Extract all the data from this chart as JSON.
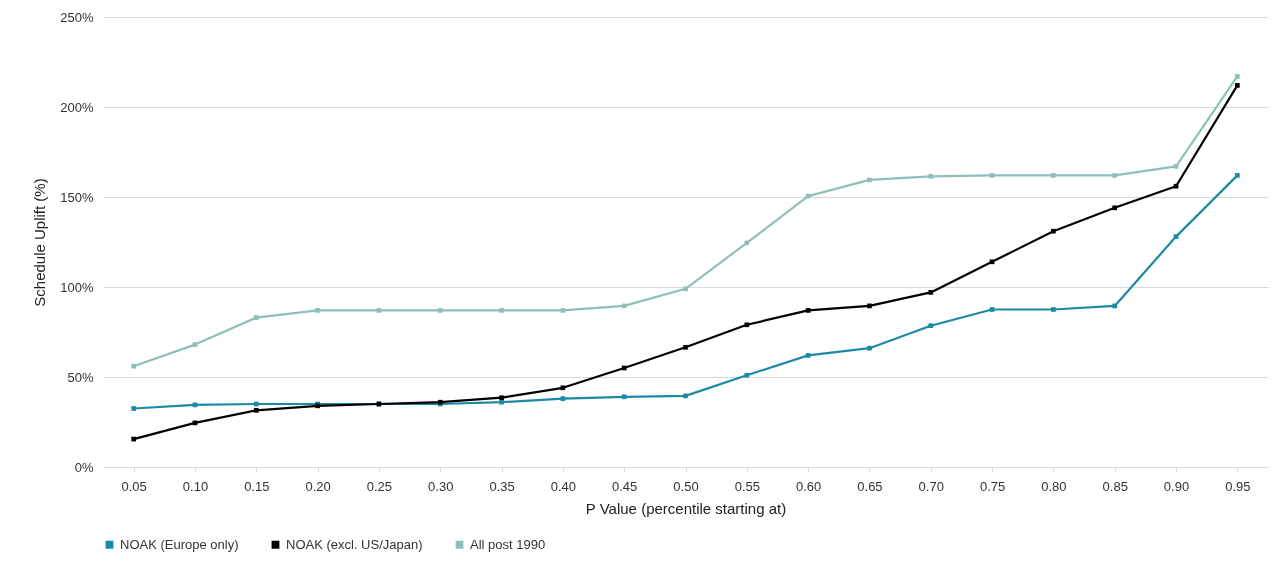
{
  "chart_data": {
    "type": "line",
    "xlabel": "P Value  (percentile starting at)",
    "ylabel": "Schedule Uplift (%)",
    "categories": [
      "0.05",
      "0.10",
      "0.15",
      "0.20",
      "0.25",
      "0.30",
      "0.35",
      "0.40",
      "0.45",
      "0.50",
      "0.55",
      "0.60",
      "0.65",
      "0.70",
      "0.75",
      "0.80",
      "0.85",
      "0.90",
      "0.95"
    ],
    "series": [
      {
        "name": "NOAK (Europe only)",
        "color": "#1a8aa5",
        "values": [
          32.5,
          34.5,
          35,
          35,
          35,
          35,
          36,
          38,
          39,
          39.5,
          51,
          62,
          66,
          78.5,
          87.5,
          87.5,
          89.5,
          128,
          162
        ]
      },
      {
        "name": "NOAK (excl. US/Japan)",
        "color": "#000000",
        "values": [
          15.5,
          24.5,
          31.5,
          34,
          35,
          36,
          38.5,
          44,
          55,
          66.5,
          79,
          87,
          89.5,
          97,
          114,
          131,
          144,
          156,
          212
        ]
      },
      {
        "name": "All post 1990",
        "color": "#8fbfbb",
        "values": [
          56,
          68,
          83,
          87,
          87,
          87,
          87,
          87,
          89.5,
          99,
          124.5,
          150.5,
          159.5,
          161.5,
          162,
          162,
          162,
          167,
          217
        ]
      }
    ],
    "ylim": [
      0,
      250
    ],
    "yticks": [
      {
        "value": 0,
        "label": "0%"
      },
      {
        "value": 50,
        "label": "50%"
      },
      {
        "value": 100,
        "label": "100%"
      },
      {
        "value": 150,
        "label": "150%"
      },
      {
        "value": 200,
        "label": "200%"
      },
      {
        "value": 250,
        "label": "250%"
      }
    ],
    "grid": "y",
    "legend": "bottom",
    "marker": "square",
    "line_style": "solid"
  }
}
